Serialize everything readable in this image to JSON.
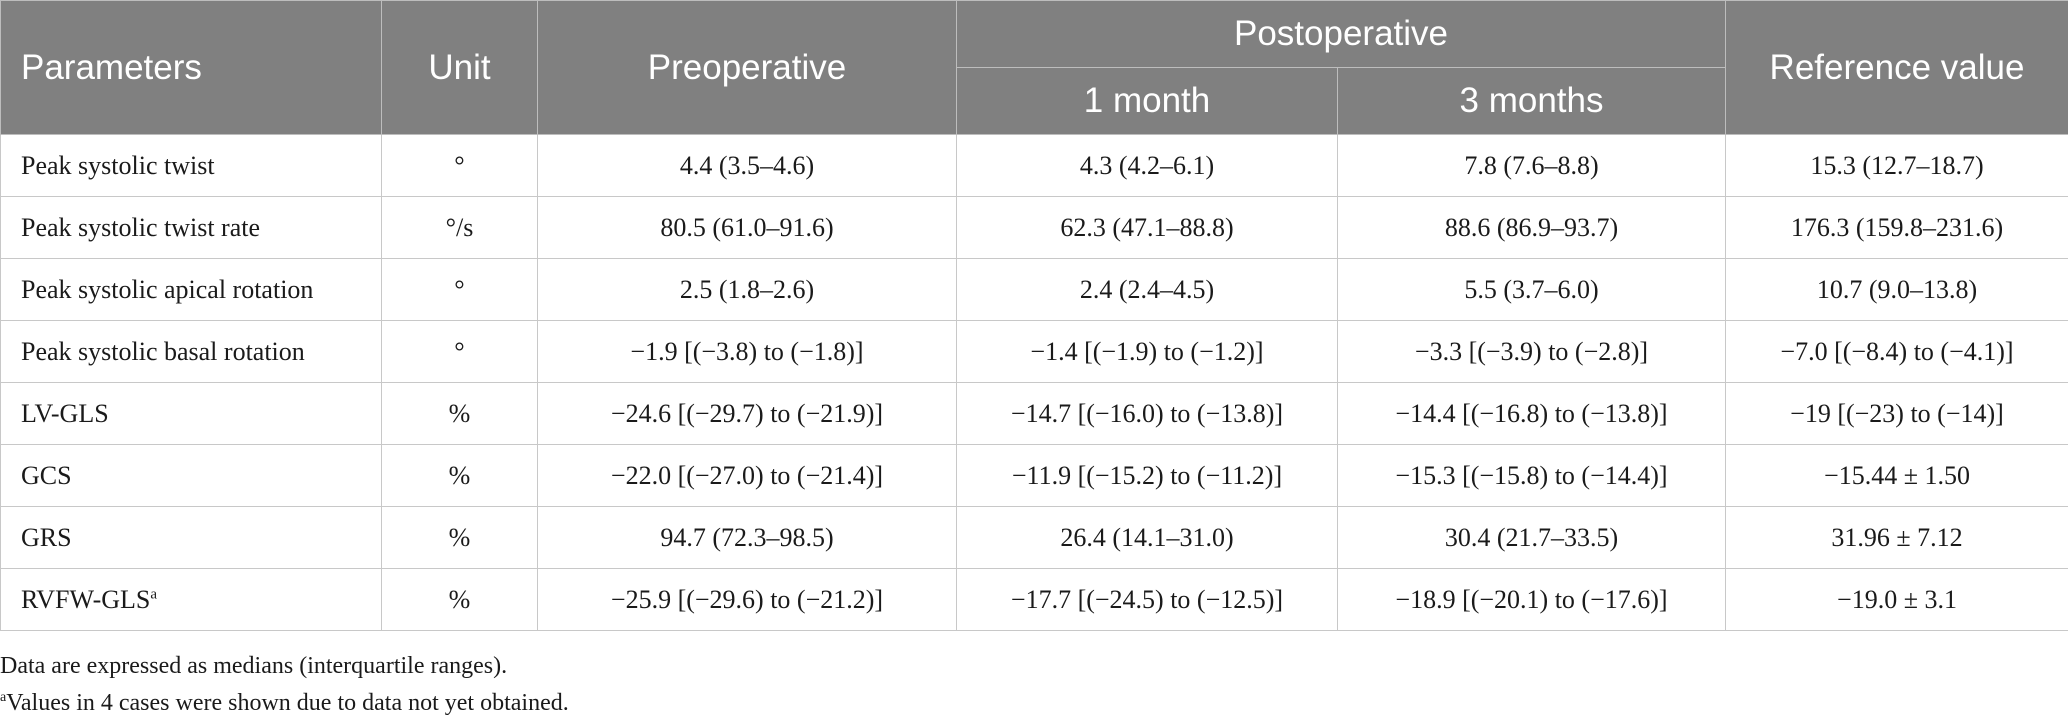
{
  "headers": {
    "parameters": "Parameters",
    "unit": "Unit",
    "preoperative": "Preoperative",
    "postoperative": "Postoperative",
    "month1": "1 month",
    "month3": "3 months",
    "reference": "Reference value"
  },
  "rows": [
    {
      "parameter": "Peak systolic twist",
      "superscript": "",
      "unit": "°",
      "preop": "4.4 (3.5–4.6)",
      "m1": "4.3 (4.2–6.1)",
      "m3": "7.8 (7.6–8.8)",
      "ref": "15.3 (12.7–18.7)"
    },
    {
      "parameter": "Peak systolic twist rate",
      "superscript": "",
      "unit": "°/s",
      "preop": "80.5 (61.0–91.6)",
      "m1": "62.3 (47.1–88.8)",
      "m3": "88.6 (86.9–93.7)",
      "ref": "176.3 (159.8–231.6)"
    },
    {
      "parameter": "Peak systolic apical rotation",
      "superscript": "",
      "unit": "°",
      "preop": "2.5 (1.8–2.6)",
      "m1": "2.4 (2.4–4.5)",
      "m3": "5.5 (3.7–6.0)",
      "ref": "10.7 (9.0–13.8)"
    },
    {
      "parameter": "Peak systolic basal rotation",
      "superscript": "",
      "unit": "°",
      "preop": "−1.9 [(−3.8) to (−1.8)]",
      "m1": "−1.4 [(−1.9) to (−1.2)]",
      "m3": "−3.3 [(−3.9) to (−2.8)]",
      "ref": "−7.0 [(−8.4) to (−4.1)]"
    },
    {
      "parameter": "LV-GLS",
      "superscript": "",
      "unit": "%",
      "preop": "−24.6 [(−29.7) to (−21.9)]",
      "m1": "−14.7 [(−16.0) to (−13.8)]",
      "m3": "−14.4 [(−16.8) to (−13.8)]",
      "ref": "−19 [(−23) to (−14)]"
    },
    {
      "parameter": "GCS",
      "superscript": "",
      "unit": "%",
      "preop": "−22.0 [(−27.0) to (−21.4)]",
      "m1": "−11.9 [(−15.2) to (−11.2)]",
      "m3": "−15.3 [(−15.8) to (−14.4)]",
      "ref": "−15.44 ± 1.50"
    },
    {
      "parameter": "GRS",
      "superscript": "",
      "unit": "%",
      "preop": "94.7 (72.3–98.5)",
      "m1": "26.4 (14.1–31.0)",
      "m3": "30.4 (21.7–33.5)",
      "ref": "31.96 ± 7.12"
    },
    {
      "parameter": "RVFW-GLS",
      "superscript": "a",
      "unit": "%",
      "preop": "−25.9 [(−29.6) to (−21.2)]",
      "m1": "−17.7 [(−24.5) to (−12.5)]",
      "m3": "−18.9 [(−20.1) to (−17.6)]",
      "ref": "−19.0 ± 3.1"
    }
  ],
  "footnotes": {
    "note1": "Data are expressed as medians (interquartile ranges).",
    "note2_mark": "a",
    "note2": "Values in 4 cases were shown due to data not yet obtained."
  },
  "colors": {
    "header_bg": "#808080",
    "header_text": "#ffffff",
    "grid": "#c8c8c8"
  }
}
